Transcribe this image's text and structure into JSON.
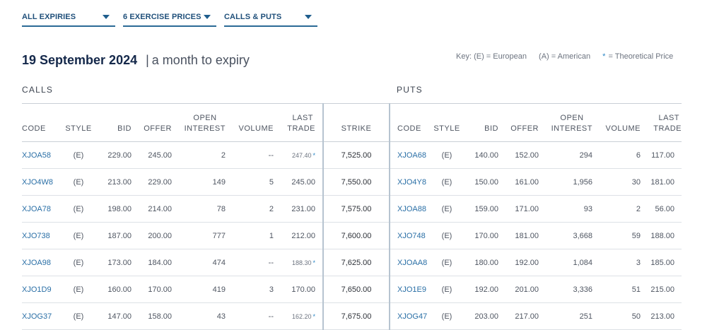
{
  "filters": [
    {
      "label": "ALL EXPIRIES"
    },
    {
      "label": "6 EXERCISE PRICES"
    },
    {
      "label": "CALLS & PUTS"
    }
  ],
  "headline": {
    "date": "19 September 2024",
    "expiry": "a month to expiry"
  },
  "key": {
    "european": "Key: (E) = European",
    "american": "(A) = American",
    "star": "*",
    "theoretical": "= Theoretical Price"
  },
  "sections": {
    "calls": "CALLS",
    "puts": "PUTS"
  },
  "headers": {
    "code": "CODE",
    "style": "STYLE",
    "bid": "BID",
    "offer": "OFFER",
    "open_interest_1": "OPEN",
    "open_interest_2": "INTEREST",
    "volume": "VOLUME",
    "last_trade_1": "LAST",
    "last_trade_2": "TRADE",
    "strike": "STRIKE"
  },
  "rows": [
    {
      "call": {
        "code": "XJOA58",
        "style": "(E)",
        "bid": "229.00",
        "offer": "245.00",
        "oi": "2",
        "volume": "--",
        "last": "247.40",
        "theo": true
      },
      "strike": "7,525.00",
      "put": {
        "code": "XJOA68",
        "style": "(E)",
        "bid": "140.00",
        "offer": "152.00",
        "oi": "294",
        "volume": "6",
        "last": "117.00"
      }
    },
    {
      "call": {
        "code": "XJO4W8",
        "style": "(E)",
        "bid": "213.00",
        "offer": "229.00",
        "oi": "149",
        "volume": "5",
        "last": "245.00",
        "theo": false
      },
      "strike": "7,550.00",
      "put": {
        "code": "XJO4Y8",
        "style": "(E)",
        "bid": "150.00",
        "offer": "161.00",
        "oi": "1,956",
        "volume": "30",
        "last": "181.00"
      }
    },
    {
      "call": {
        "code": "XJOA78",
        "style": "(E)",
        "bid": "198.00",
        "offer": "214.00",
        "oi": "78",
        "volume": "2",
        "last": "231.00",
        "theo": false
      },
      "strike": "7,575.00",
      "put": {
        "code": "XJOA88",
        "style": "(E)",
        "bid": "159.00",
        "offer": "171.00",
        "oi": "93",
        "volume": "2",
        "last": "56.00"
      }
    },
    {
      "call": {
        "code": "XJO738",
        "style": "(E)",
        "bid": "187.00",
        "offer": "200.00",
        "oi": "777",
        "volume": "1",
        "last": "212.00",
        "theo": false
      },
      "strike": "7,600.00",
      "put": {
        "code": "XJO748",
        "style": "(E)",
        "bid": "170.00",
        "offer": "181.00",
        "oi": "3,668",
        "volume": "59",
        "last": "188.00"
      }
    },
    {
      "call": {
        "code": "XJOA98",
        "style": "(E)",
        "bid": "173.00",
        "offer": "184.00",
        "oi": "474",
        "volume": "--",
        "last": "188.30",
        "theo": true
      },
      "strike": "7,625.00",
      "put": {
        "code": "XJOAA8",
        "style": "(E)",
        "bid": "180.00",
        "offer": "192.00",
        "oi": "1,084",
        "volume": "3",
        "last": "185.00"
      }
    },
    {
      "call": {
        "code": "XJO1D9",
        "style": "(E)",
        "bid": "160.00",
        "offer": "170.00",
        "oi": "419",
        "volume": "3",
        "last": "170.00",
        "theo": false
      },
      "strike": "7,650.00",
      "put": {
        "code": "XJO1E9",
        "style": "(E)",
        "bid": "192.00",
        "offer": "201.00",
        "oi": "3,336",
        "volume": "51",
        "last": "215.00"
      }
    },
    {
      "call": {
        "code": "XJOG37",
        "style": "(E)",
        "bid": "147.00",
        "offer": "158.00",
        "oi": "43",
        "volume": "--",
        "last": "162.20",
        "theo": true
      },
      "strike": "7,675.00",
      "put": {
        "code": "XJOG47",
        "style": "(E)",
        "bid": "203.00",
        "offer": "217.00",
        "oi": "251",
        "volume": "50",
        "last": "213.00"
      }
    }
  ]
}
